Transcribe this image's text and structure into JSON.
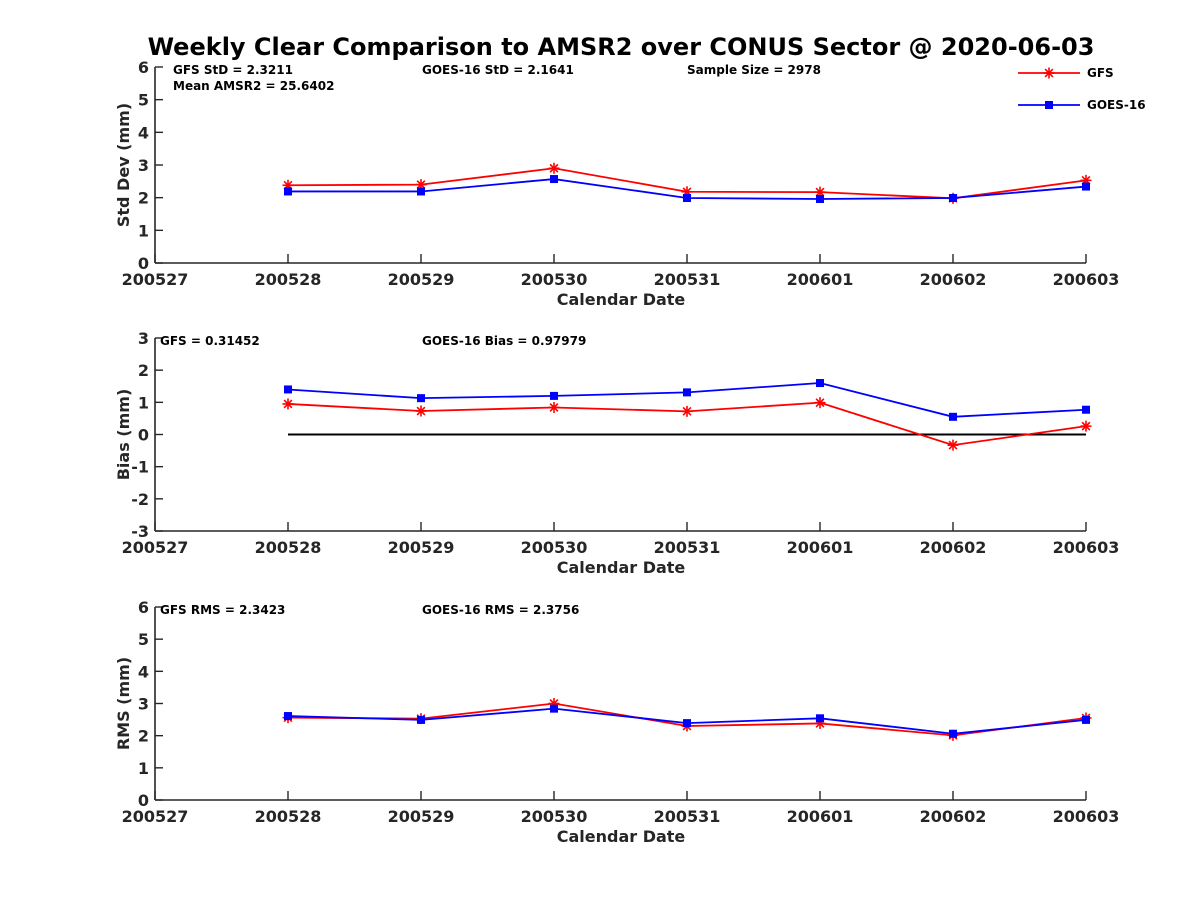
{
  "title": "Weekly Clear Comparison to AMSR2 over CONUS Sector @ 2020-06-03",
  "legend": [
    {
      "label": "GFS",
      "color": "#ff0000",
      "marker": "asterisk"
    },
    {
      "label": "GOES-16",
      "color": "#0000ff",
      "marker": "square"
    }
  ],
  "chart_data": [
    {
      "type": "line",
      "x": [
        "200527",
        "200528",
        "200529",
        "200530",
        "200531",
        "200601",
        "200602",
        "200603"
      ],
      "xlabel": "Calendar Date",
      "ylabel": "Std Dev (mm)",
      "ylim": [
        0,
        6
      ],
      "yticks": [
        "0",
        "1",
        "2",
        "3",
        "4",
        "5",
        "6"
      ],
      "series": [
        {
          "name": "GFS",
          "color": "#ff0000",
          "marker": "asterisk",
          "x": [
            "200528",
            "200529",
            "200530",
            "200531",
            "200601",
            "200602",
            "200603"
          ],
          "values": [
            2.38,
            2.4,
            2.9,
            2.18,
            2.17,
            1.98,
            2.53
          ]
        },
        {
          "name": "GOES-16",
          "color": "#0000ff",
          "marker": "square",
          "x": [
            "200528",
            "200529",
            "200530",
            "200531",
            "200601",
            "200602",
            "200603"
          ],
          "values": [
            2.19,
            2.19,
            2.57,
            1.99,
            1.96,
            1.99,
            2.34
          ]
        }
      ],
      "annotations": [
        "GFS StD = 2.3211",
        "GOES-16 StD = 2.1641",
        "Sample Size = 2978",
        "Mean AMSR2 = 25.6402"
      ]
    },
    {
      "type": "line",
      "x": [
        "200527",
        "200528",
        "200529",
        "200530",
        "200531",
        "200601",
        "200602",
        "200603"
      ],
      "xlabel": "Calendar Date",
      "ylabel": "Bias (mm)",
      "ylim": [
        -3,
        3
      ],
      "yticks": [
        "-3",
        "-2",
        "-1",
        "0",
        "1",
        "2",
        "3"
      ],
      "series": [
        {
          "name": "GFS",
          "color": "#ff0000",
          "marker": "asterisk",
          "x": [
            "200528",
            "200529",
            "200530",
            "200531",
            "200601",
            "200602",
            "200603"
          ],
          "values": [
            0.95,
            0.73,
            0.84,
            0.72,
            0.99,
            -0.33,
            0.26
          ]
        },
        {
          "name": "GOES-16",
          "color": "#0000ff",
          "marker": "square",
          "x": [
            "200528",
            "200529",
            "200530",
            "200531",
            "200601",
            "200602",
            "200603"
          ],
          "values": [
            1.4,
            1.13,
            1.2,
            1.31,
            1.6,
            0.55,
            0.77
          ]
        }
      ],
      "reference_line": {
        "y": 0,
        "x_from": "200528",
        "x_to": "200603",
        "color": "#000000"
      },
      "annotations": [
        "GFS = 0.31452",
        "GOES-16 Bias  = 0.97979"
      ]
    },
    {
      "type": "line",
      "x": [
        "200527",
        "200528",
        "200529",
        "200530",
        "200531",
        "200601",
        "200602",
        "200603"
      ],
      "xlabel": "Calendar Date",
      "ylabel": "RMS (mm)",
      "ylim": [
        0,
        6
      ],
      "yticks": [
        "0",
        "1",
        "2",
        "3",
        "4",
        "5",
        "6"
      ],
      "series": [
        {
          "name": "GFS",
          "color": "#ff0000",
          "marker": "asterisk",
          "x": [
            "200528",
            "200529",
            "200530",
            "200531",
            "200601",
            "200602",
            "200603"
          ],
          "values": [
            2.56,
            2.53,
            3.0,
            2.3,
            2.38,
            2.01,
            2.55
          ]
        },
        {
          "name": "GOES-16",
          "color": "#0000ff",
          "marker": "square",
          "x": [
            "200528",
            "200529",
            "200530",
            "200531",
            "200601",
            "200602",
            "200603"
          ],
          "values": [
            2.61,
            2.49,
            2.84,
            2.39,
            2.54,
            2.06,
            2.49
          ]
        }
      ],
      "annotations": [
        "GFS RMS = 2.3423",
        "GOES-16 RMS = 2.3756"
      ]
    }
  ]
}
